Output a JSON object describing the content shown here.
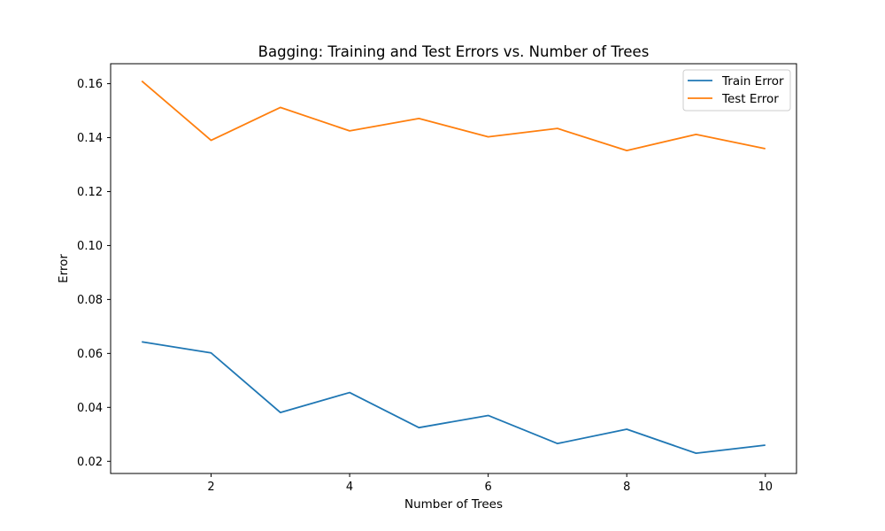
{
  "chart_data": {
    "type": "line",
    "title": "Bagging: Training and Test Errors vs. Number of Trees",
    "xlabel": "Number of Trees",
    "ylabel": "Error",
    "x": [
      1,
      2,
      3,
      4,
      5,
      6,
      7,
      8,
      9,
      10
    ],
    "xlim": [
      0.55,
      10.45
    ],
    "ylim": [
      0.0155,
      0.1674
    ],
    "xticks": [
      2,
      4,
      6,
      8,
      10
    ],
    "yticks": [
      0.02,
      0.04,
      0.06,
      0.08,
      0.1,
      0.12,
      0.14,
      0.16
    ],
    "ytick_labels": [
      "0.02",
      "0.04",
      "0.06",
      "0.08",
      "0.10",
      "0.12",
      "0.14",
      "0.16"
    ],
    "grid": false,
    "legend_position": "top-right",
    "series": [
      {
        "name": "Train Error",
        "color": "#1f77b4",
        "values": [
          0.0643,
          0.0602,
          0.0381,
          0.0455,
          0.0325,
          0.037,
          0.0266,
          0.0319,
          0.023,
          0.026
        ]
      },
      {
        "name": "Test Error",
        "color": "#ff7f0e",
        "values": [
          0.161,
          0.139,
          0.1512,
          0.1425,
          0.1471,
          0.1403,
          0.1434,
          0.1352,
          0.1412,
          0.1359
        ]
      }
    ]
  }
}
